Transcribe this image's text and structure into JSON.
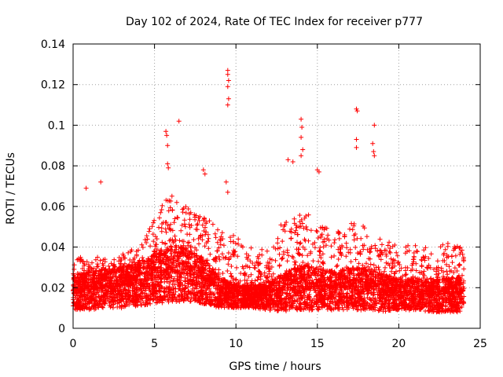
{
  "chart_data": {
    "type": "scatter",
    "title": "Day 102 of 2024, Rate Of TEC Index for receiver p777",
    "xlabel": "GPS time / hours",
    "ylabel": "ROTI / TECUs",
    "xlim": [
      0,
      25
    ],
    "ylim": [
      0,
      0.14
    ],
    "xticks": [
      0,
      5,
      10,
      15,
      20,
      25
    ],
    "yticks": [
      0,
      0.02,
      0.04,
      0.06,
      0.08,
      0.1,
      0.12,
      0.14
    ],
    "xtick_labels": [
      "0",
      "5",
      "10",
      "15",
      "20",
      "25"
    ],
    "ytick_labels": [
      "0",
      "0.02",
      "0.04",
      "0.06",
      "0.08",
      "0.1",
      "0.12",
      "0.14"
    ],
    "grid": true,
    "marker": "+",
    "marker_color": "#ff0000",
    "series": [
      {
        "name": "ROTI",
        "notable_points": [
          [
            9.5,
            0.127
          ],
          [
            9.5,
            0.125
          ],
          [
            9.55,
            0.122
          ],
          [
            9.5,
            0.119
          ],
          [
            9.55,
            0.113
          ],
          [
            9.5,
            0.11
          ],
          [
            6.5,
            0.102
          ],
          [
            5.7,
            0.097
          ],
          [
            5.75,
            0.095
          ],
          [
            5.8,
            0.09
          ],
          [
            14.0,
            0.103
          ],
          [
            14.05,
            0.099
          ],
          [
            14.0,
            0.094
          ],
          [
            14.1,
            0.088
          ],
          [
            14.0,
            0.085
          ],
          [
            17.4,
            0.108
          ],
          [
            17.45,
            0.107
          ],
          [
            18.5,
            0.1
          ],
          [
            17.4,
            0.093
          ],
          [
            17.4,
            0.089
          ],
          [
            18.4,
            0.091
          ],
          [
            18.45,
            0.087
          ],
          [
            18.5,
            0.085
          ],
          [
            13.2,
            0.083
          ],
          [
            13.5,
            0.082
          ],
          [
            15.0,
            0.078
          ],
          [
            15.1,
            0.077
          ],
          [
            5.8,
            0.081
          ],
          [
            5.85,
            0.079
          ],
          [
            8.0,
            0.078
          ],
          [
            8.1,
            0.076
          ],
          [
            1.7,
            0.072
          ],
          [
            0.8,
            0.069
          ],
          [
            9.4,
            0.072
          ],
          [
            9.5,
            0.067
          ]
        ],
        "envelope_hourly": {
          "hours": [
            0,
            1,
            2,
            3,
            4,
            5,
            6,
            7,
            8,
            9,
            10,
            11,
            12,
            13,
            14,
            15,
            16,
            17,
            18,
            19,
            20,
            21,
            22,
            23,
            24
          ],
          "lower": [
            0.009,
            0.009,
            0.01,
            0.01,
            0.011,
            0.012,
            0.013,
            0.013,
            0.012,
            0.01,
            0.01,
            0.01,
            0.009,
            0.008,
            0.009,
            0.009,
            0.009,
            0.009,
            0.009,
            0.008,
            0.009,
            0.009,
            0.008,
            0.008,
            0.008
          ],
          "typical": [
            0.018,
            0.019,
            0.02,
            0.021,
            0.022,
            0.025,
            0.028,
            0.027,
            0.024,
            0.018,
            0.016,
            0.016,
            0.016,
            0.018,
            0.021,
            0.02,
            0.019,
            0.02,
            0.02,
            0.018,
            0.017,
            0.017,
            0.016,
            0.017,
            0.017
          ],
          "upper": [
            0.036,
            0.034,
            0.036,
            0.037,
            0.04,
            0.058,
            0.066,
            0.06,
            0.055,
            0.05,
            0.045,
            0.04,
            0.038,
            0.055,
            0.06,
            0.052,
            0.048,
            0.052,
            0.05,
            0.045,
            0.04,
            0.042,
            0.04,
            0.042,
            0.04
          ]
        }
      }
    ]
  }
}
